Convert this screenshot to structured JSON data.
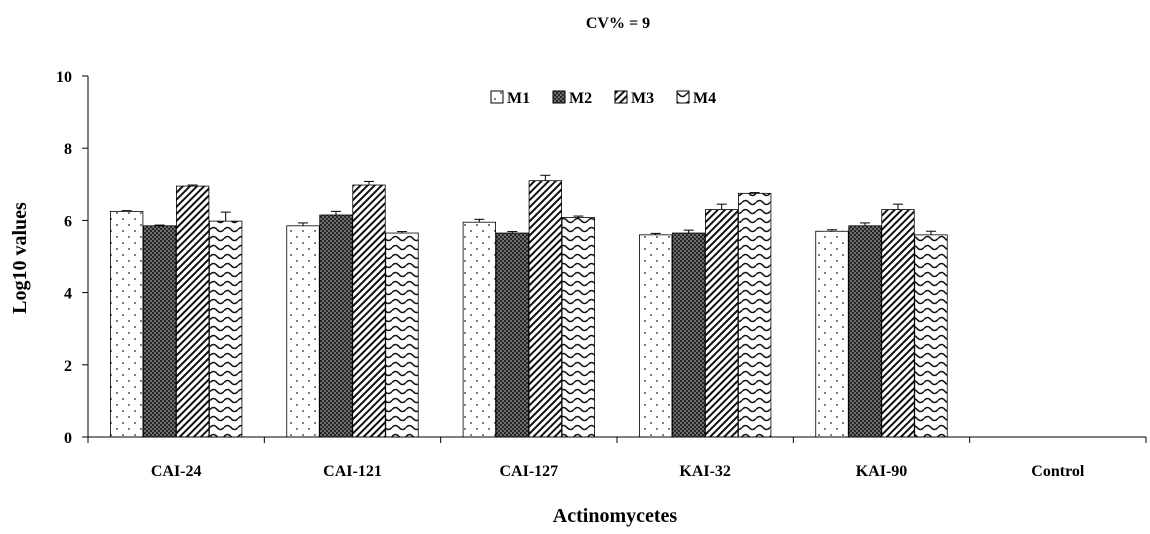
{
  "chart_data": {
    "type": "bar",
    "title": "",
    "subtitle": "CV% = 9",
    "xlabel": "Actinomycetes",
    "ylabel": "Log10 values",
    "ylim": [
      0,
      10
    ],
    "yticks": [
      "0",
      "2",
      "4",
      "6",
      "8",
      "10"
    ],
    "grid": false,
    "legend_position": "top-center",
    "categories": [
      "CAI-24",
      "CAI-121",
      "CAI-127",
      "KAI-32",
      "KAI-90",
      "Control"
    ],
    "series": [
      {
        "name": "M1",
        "pattern": "dots",
        "values": [
          6.25,
          5.85,
          5.95,
          5.6,
          5.7,
          0
        ],
        "errors": [
          0.02,
          0.08,
          0.08,
          0.04,
          0.04,
          0
        ]
      },
      {
        "name": "M2",
        "pattern": "crosshatch",
        "values": [
          5.85,
          6.15,
          5.65,
          5.65,
          5.85,
          0
        ],
        "errors": [
          0.02,
          0.1,
          0.04,
          0.08,
          0.08,
          0
        ]
      },
      {
        "name": "M3",
        "pattern": "diagonal",
        "values": [
          6.95,
          6.98,
          7.1,
          6.3,
          6.3,
          0
        ],
        "errors": [
          0.03,
          0.1,
          0.15,
          0.15,
          0.15,
          0
        ]
      },
      {
        "name": "M4",
        "pattern": "wave",
        "values": [
          5.98,
          5.65,
          6.08,
          6.75,
          5.6,
          0
        ],
        "errors": [
          0.25,
          0.04,
          0.04,
          0.02,
          0.1,
          0
        ]
      }
    ]
  }
}
